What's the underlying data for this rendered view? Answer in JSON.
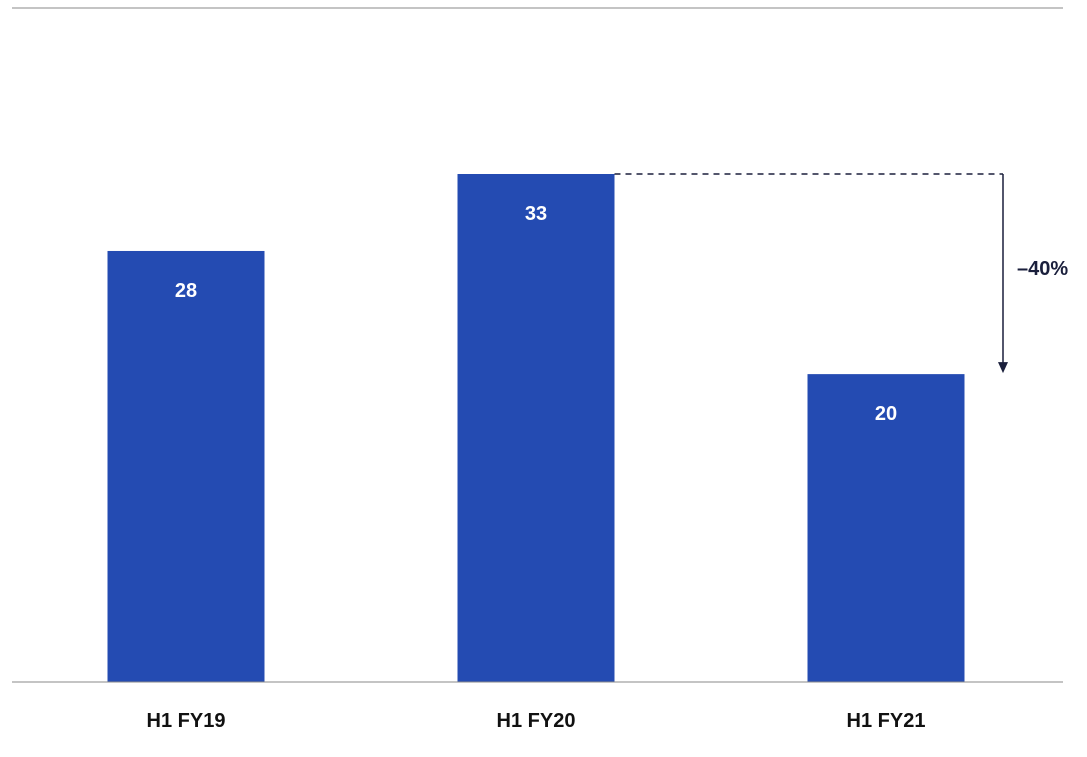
{
  "chart_data": {
    "type": "bar",
    "categories": [
      "H1 FY19",
      "H1 FY20",
      "H1 FY21"
    ],
    "values": [
      28,
      33,
      20
    ],
    "value_labels": [
      "28",
      "33",
      "20"
    ],
    "title": "",
    "xlabel": "",
    "ylabel": "",
    "ylim": [
      0,
      33
    ],
    "grid": false,
    "bar_color": "#244BB2",
    "annotation": {
      "label": "–40%",
      "from_category": "H1 FY20",
      "to_category": "H1 FY21",
      "color": "#1a1f3c"
    }
  }
}
